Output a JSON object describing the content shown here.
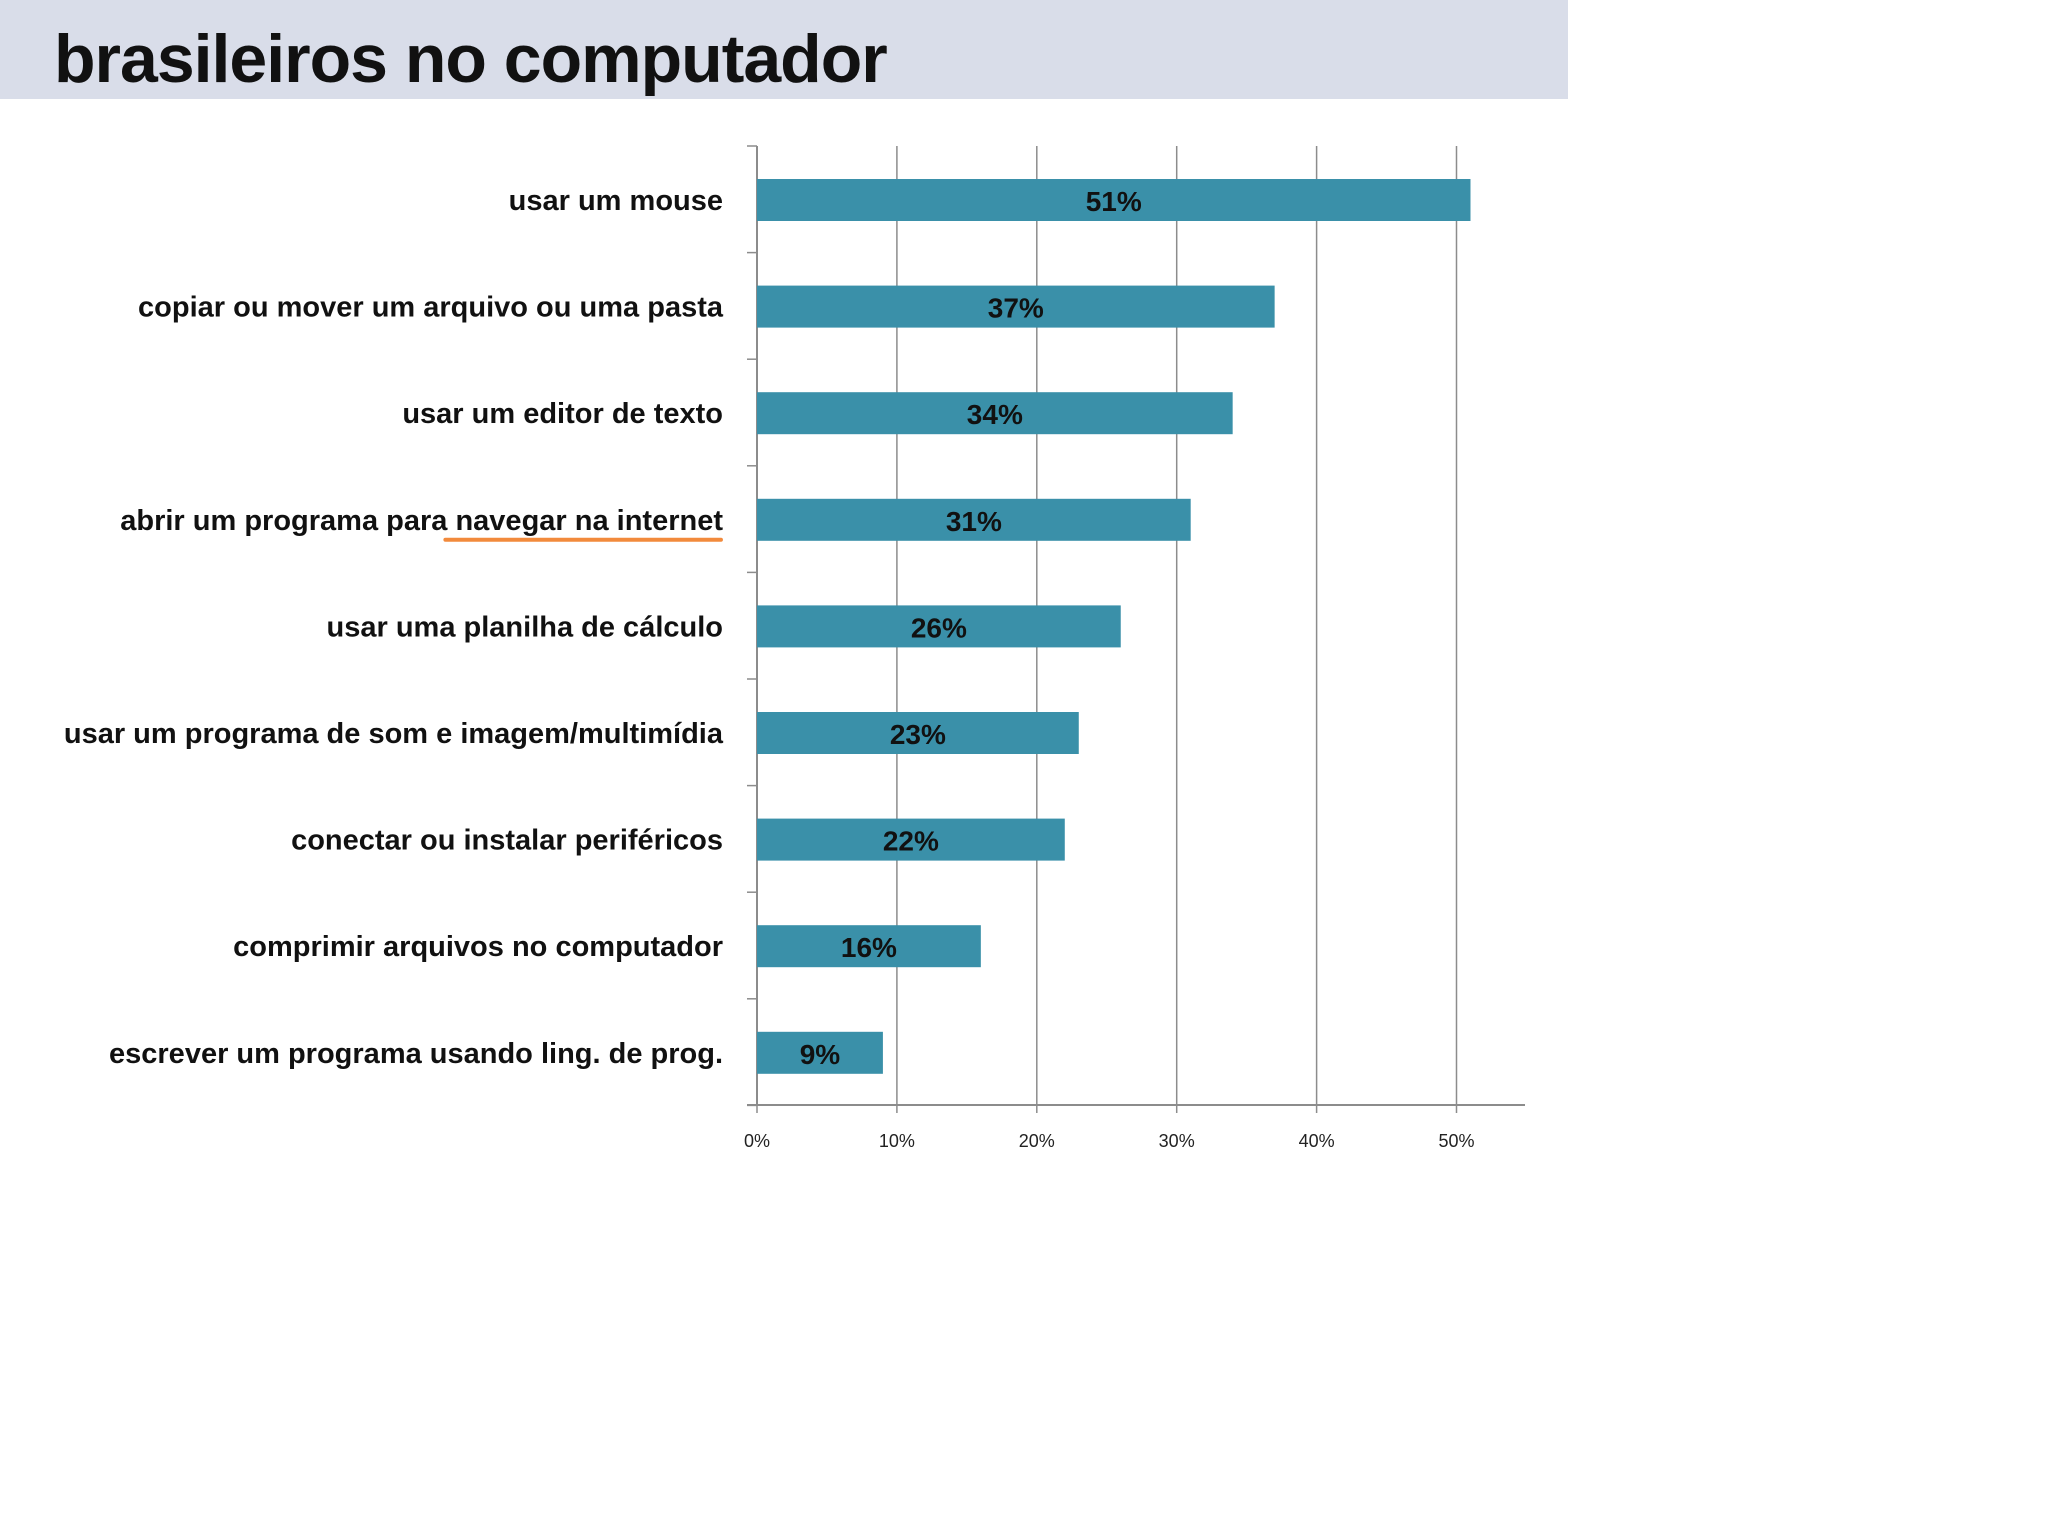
{
  "slide": {
    "title": "brasileiros no computador"
  },
  "colors": {
    "header_band": "#d9dde9",
    "bar": "#3a90a9",
    "gridline": "#8c8c8c",
    "emphasis_underline": "#f28a3c"
  },
  "chart_data": {
    "type": "bar",
    "orientation": "horizontal",
    "categories": [
      "usar um mouse",
      "copiar ou mover um arquivo ou uma pasta",
      "usar um editor de texto",
      "abrir um programa para navegar na internet",
      "usar uma planilha de cálculo",
      "usar um programa de som e imagem/multimídia",
      "conectar ou instalar periféricos",
      "comprimir arquivos no computador",
      "escrever um programa usando ling. de prog."
    ],
    "values": [
      51,
      37,
      34,
      31,
      26,
      23,
      22,
      16,
      9
    ],
    "data_labels": [
      "51%",
      "37%",
      "34%",
      "31%",
      "26%",
      "23%",
      "22%",
      "16%",
      "9%"
    ],
    "x_ticks": [
      "0%",
      "10%",
      "20%",
      "30%",
      "40%",
      "50%"
    ],
    "x_tick_values": [
      0,
      10,
      20,
      30,
      40,
      50
    ],
    "xlim": [
      0,
      55
    ],
    "grid": "vertical",
    "legend": "none",
    "emphasis": {
      "category_index": 3,
      "underlined_text": "navegar na internet"
    }
  }
}
